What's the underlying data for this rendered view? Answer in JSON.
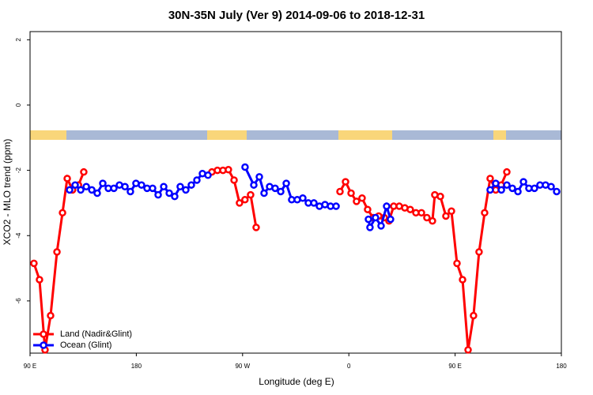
{
  "chart_data": {
    "type": "line",
    "title": "30N-35N July (Ver 9)   2014-09-06 to 2018-12-31",
    "x_label": "Longitude (deg E)",
    "y_label": "XCO2 - MLO trend (ppm)",
    "xlim": [
      90,
      540
    ],
    "ylim": [
      -7.6,
      2.25
    ],
    "xticks": [
      {
        "value": 90,
        "label": "90 E"
      },
      180,
      {
        "value": 270,
        "label": "90 W"
      },
      {
        "value": 360,
        "label": "0"
      },
      {
        "value": 450,
        "label": "90 E"
      },
      {
        "value": 540,
        "label": "180"
      }
    ],
    "yticks": [
      -6,
      -4,
      -2,
      0,
      2
    ],
    "legend": "bottom-left",
    "series": [
      {
        "name": "Land (Nadir&Glint)",
        "color": "#ff0000",
        "x": [
          93.3,
          98,
          102.7,
          107.4,
          112.8,
          117.5,
          121.5,
          126,
          131,
          135.5,
          null,
          244,
          248.7,
          253.4,
          258,
          262.8,
          267.4,
          272,
          276.8,
          281.5,
          null,
          352.5,
          357.2,
          361.9,
          366.5,
          371.2,
          375.9,
          380.6,
          385.3,
          390,
          394,
          398,
          402.7,
          407.4,
          412,
          416.8,
          421.5,
          426.1,
          430.8,
          432.8,
          437.5,
          442.2,
          446.9,
          451.6,
          456.3,
          461,
          465.6,
          470.3,
          475,
          479.7,
          484.4,
          489,
          493.8
        ],
        "values": [
          -4.85,
          -5.35,
          -7.5,
          -6.45,
          -4.5,
          -3.3,
          -2.25,
          -2.6,
          -2.45,
          -2.05,
          null,
          -2.05,
          -2.0,
          -2.0,
          -1.98,
          -2.3,
          -3.0,
          -2.9,
          -2.75,
          -3.75,
          null,
          -2.65,
          -2.35,
          -2.7,
          -2.95,
          -2.85,
          -3.2,
          -3.45,
          -3.4,
          -3.45,
          -3.55,
          -3.1,
          -3.1,
          -3.15,
          -3.2,
          -3.3,
          -3.3,
          -3.45,
          -3.55,
          -2.75,
          -2.8,
          -3.4,
          -3.25,
          -4.85,
          -5.35,
          -7.5,
          -6.45,
          -4.5,
          -3.3,
          -2.25,
          -2.6,
          -2.45,
          -2.05
        ]
      },
      {
        "name": "Ocean (Glint)",
        "color": "#0000ff",
        "x": [
          123.5,
          128.2,
          132.9,
          137.6,
          142.3,
          146.9,
          151.6,
          156.3,
          161,
          165.7,
          170.4,
          175,
          179.7,
          184.4,
          189.1,
          193.8,
          198.5,
          203.2,
          207.9,
          212.5,
          217.2,
          221.9,
          226.6,
          231.3,
          236,
          240.7,
          null,
          272.1,
          279.5,
          284.2,
          288.2,
          292.9,
          297.6,
          302.3,
          307,
          311.6,
          316.3,
          321,
          325.7,
          330.4,
          335.1,
          339.8,
          344.5,
          349.2,
          null,
          376.6,
          377.9,
          382.6,
          387.3,
          392,
          395.3,
          null,
          479.7,
          484.4,
          489.2,
          493.8,
          498.5,
          503.2,
          507.9,
          512.5,
          517.2,
          521.9,
          526.6,
          531.3,
          536
        ],
        "values": [
          -2.6,
          -2.45,
          -2.6,
          -2.5,
          -2.6,
          -2.7,
          -2.4,
          -2.55,
          -2.55,
          -2.45,
          -2.5,
          -2.65,
          -2.4,
          -2.45,
          -2.55,
          -2.55,
          -2.75,
          -2.5,
          -2.7,
          -2.8,
          -2.5,
          -2.6,
          -2.45,
          -2.3,
          -2.1,
          -2.15,
          null,
          -1.9,
          -2.45,
          -2.2,
          -2.7,
          -2.5,
          -2.55,
          -2.65,
          -2.4,
          -2.9,
          -2.9,
          -2.85,
          -3.0,
          -3.0,
          -3.1,
          -3.05,
          -3.1,
          -3.1,
          null,
          -3.5,
          -3.75,
          -3.45,
          -3.7,
          -3.1,
          -3.5,
          null,
          -2.6,
          -2.4,
          -2.6,
          -2.45,
          -2.55,
          -2.65,
          -2.35,
          -2.55,
          -2.55,
          -2.45,
          -2.45,
          -2.5,
          -2.65
        ]
      }
    ]
  }
}
